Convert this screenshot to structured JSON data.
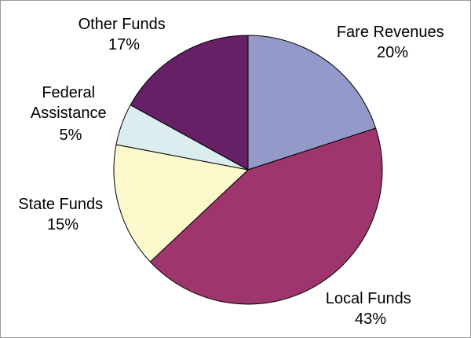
{
  "chart_data": {
    "type": "pie",
    "start_angle_deg": 0,
    "direction": "clockwise",
    "slices": [
      {
        "label": "Fare Revenues",
        "value": 20,
        "value_label": "20%",
        "color": "#9399C9"
      },
      {
        "label": "Local Funds",
        "value": 43,
        "value_label": "43%",
        "color": "#9E366D"
      },
      {
        "label": "State Funds",
        "value": 15,
        "value_label": "15%",
        "color": "#FBF8CC"
      },
      {
        "label": "Federal Assistance",
        "value": 5,
        "value_label": "5%",
        "color": "#DCEDF0"
      },
      {
        "label": "Other Funds",
        "value": 17,
        "value_label": "17%",
        "color": "#652066"
      }
    ],
    "edge_color": "#000000"
  }
}
